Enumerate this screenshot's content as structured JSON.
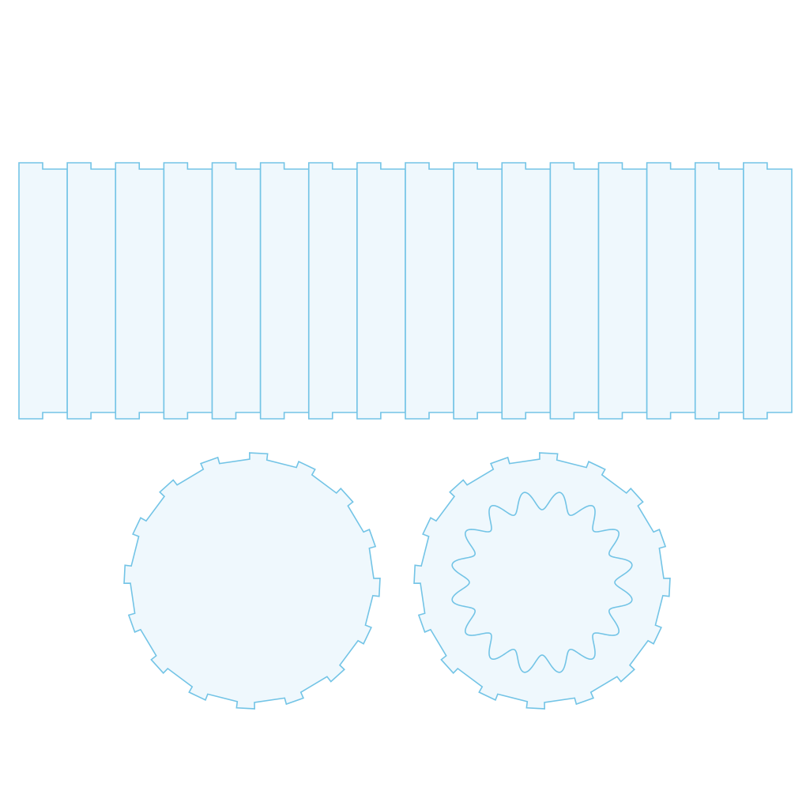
{
  "colors": {
    "background": "#ffffff",
    "fill": "#eff8fd",
    "stroke": "#73c4e6"
  },
  "strip": {
    "panel_count": 16
  },
  "disc_plain": {
    "tab_count": 16
  },
  "disc_wavy": {
    "tab_count": 16,
    "inner_wave_count": 16
  }
}
